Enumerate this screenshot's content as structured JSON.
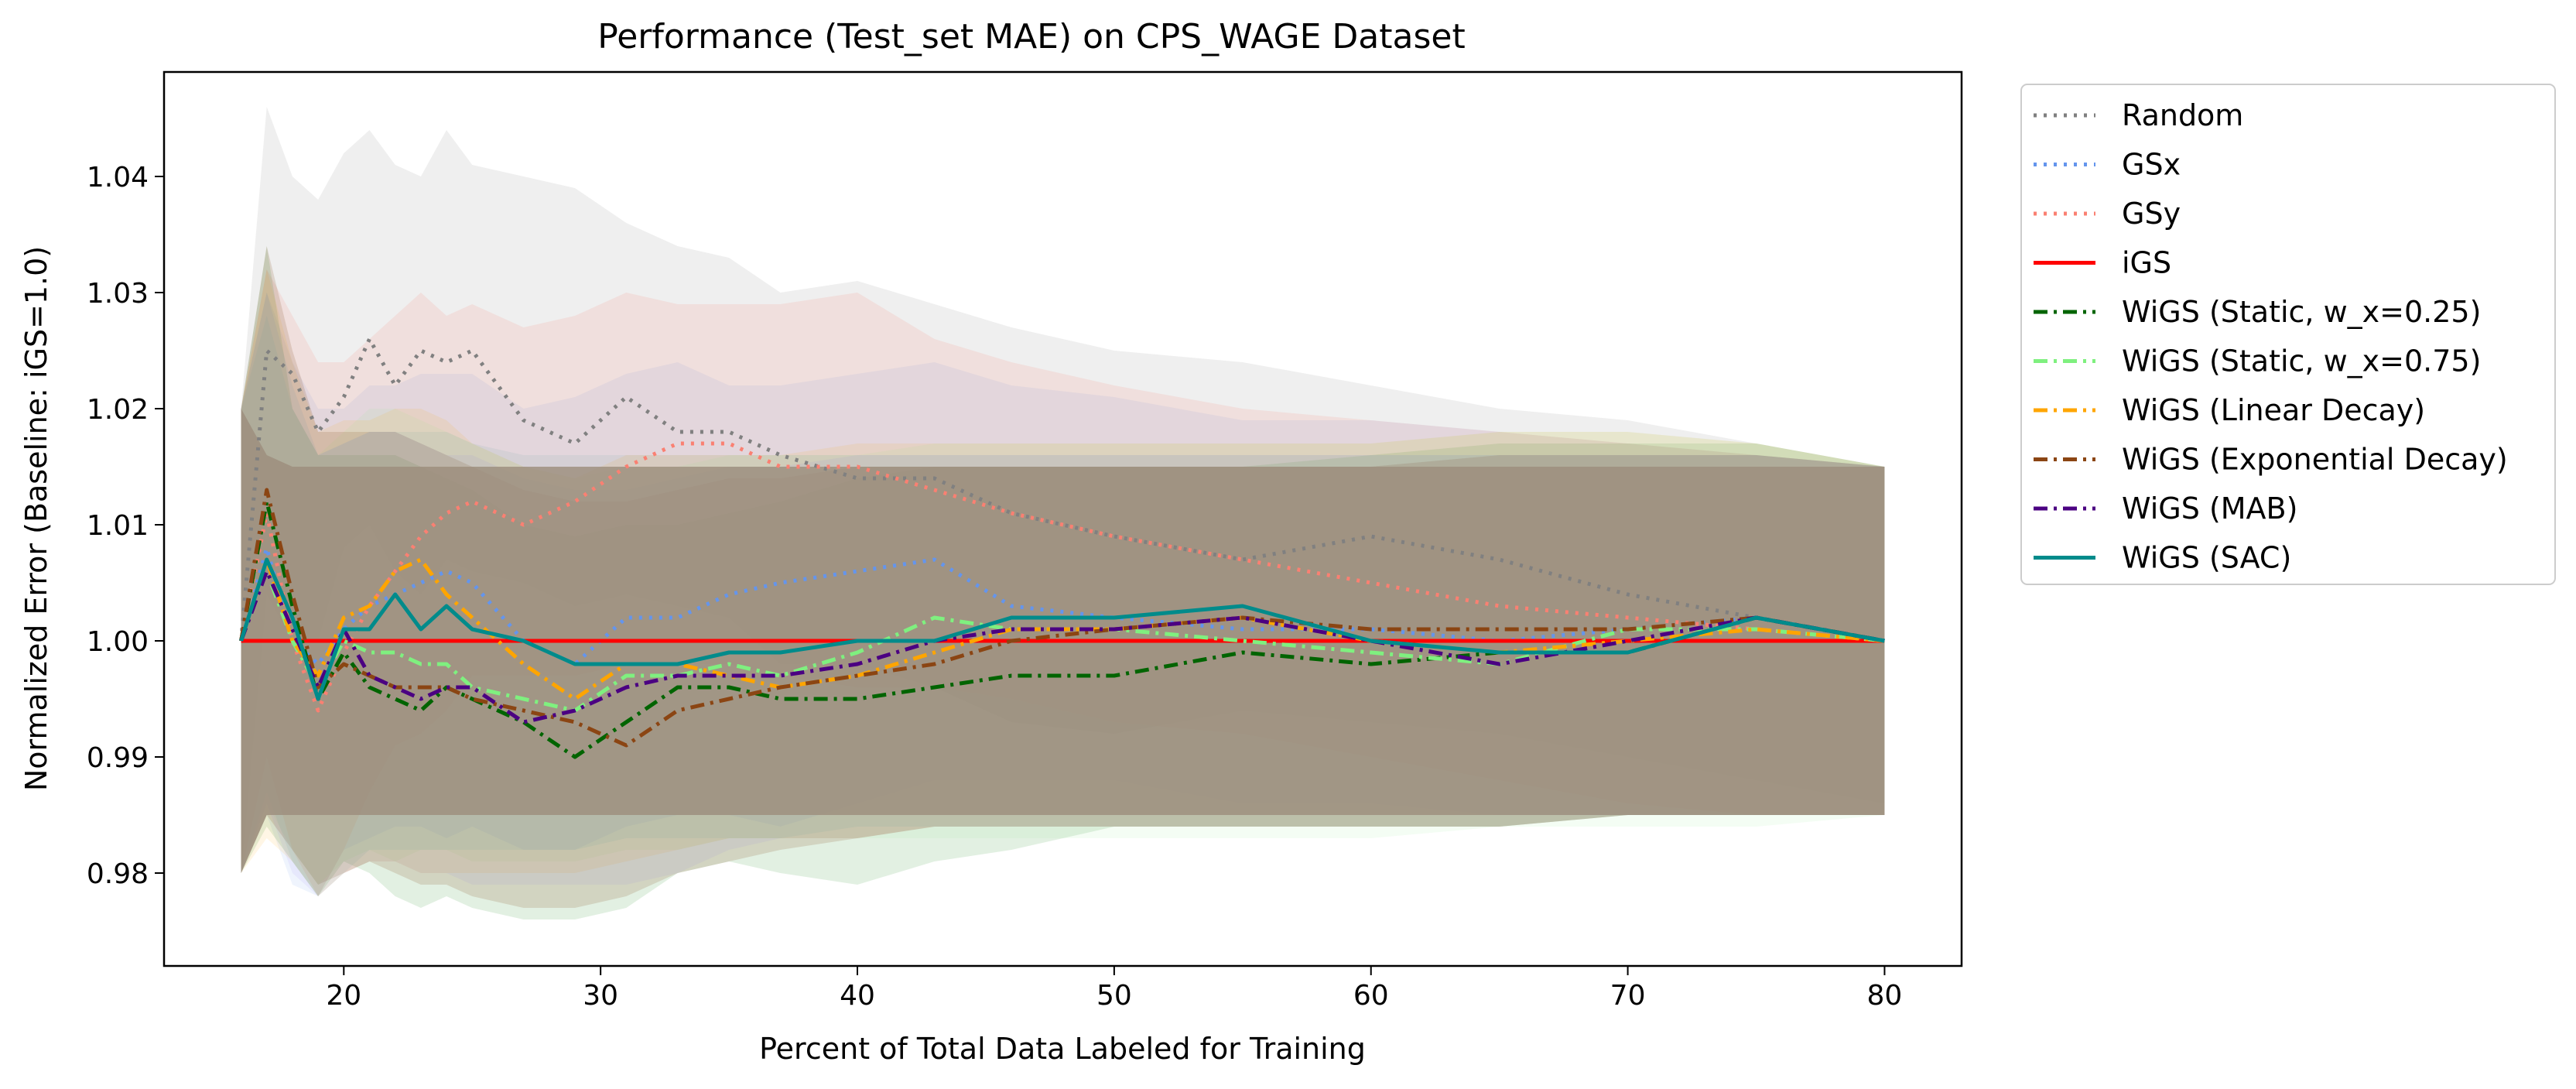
{
  "chart_data": {
    "type": "line",
    "title": "Performance (Test_set MAE) on CPS_WAGE Dataset",
    "xlabel": "Percent of Total Data Labeled for Training",
    "ylabel": "Normalized Error (Baseline: iGS=1.0)",
    "xlim": [
      13,
      83
    ],
    "ylim": [
      0.972,
      1.049
    ],
    "xticks": [
      20,
      30,
      40,
      50,
      60,
      70,
      80
    ],
    "xtick_labels": [
      "20",
      "30",
      "40",
      "50",
      "60",
      "70",
      "80"
    ],
    "yticks": [
      0.98,
      0.99,
      1.0,
      1.01,
      1.02,
      1.03,
      1.04
    ],
    "ytick_labels": [
      "0.98",
      "0.99",
      "1.00",
      "1.01",
      "1.02",
      "1.03",
      "1.04"
    ],
    "grid": false,
    "legend_position": "outside-right",
    "x": [
      16,
      17,
      18,
      19,
      20,
      21,
      22,
      23,
      24,
      25,
      27,
      29,
      31,
      33,
      35,
      37,
      40,
      43,
      46,
      50,
      55,
      60,
      65,
      70,
      75,
      80
    ],
    "bands": [
      {
        "name": "Random",
        "color": "#bdbdbd",
        "opacity": 0.24,
        "upper": [
          1.02,
          1.046,
          1.04,
          1.038,
          1.042,
          1.044,
          1.041,
          1.04,
          1.044,
          1.041,
          1.04,
          1.039,
          1.036,
          1.034,
          1.033,
          1.03,
          1.031,
          1.029,
          1.027,
          1.025,
          1.024,
          1.022,
          1.02,
          1.019,
          1.017,
          1.015
        ],
        "lower": [
          0.98,
          1.004,
          1.0,
          1.0,
          1.008,
          1.01,
          1.006,
          1.004,
          1.007,
          1.006,
          1.005,
          1.003,
          1.004,
          1.003,
          1.002,
          0.998,
          0.998,
          0.996,
          0.993,
          0.992,
          0.994,
          0.993,
          0.992,
          0.99,
          0.988,
          0.986
        ]
      },
      {
        "name": "GSx",
        "color": "#6495ed",
        "opacity": 0.1,
        "upper": [
          1.02,
          1.03,
          1.024,
          1.02,
          1.02,
          1.022,
          1.022,
          1.023,
          1.023,
          1.023,
          1.02,
          1.021,
          1.023,
          1.024,
          1.022,
          1.022,
          1.023,
          1.024,
          1.022,
          1.021,
          1.019,
          1.019,
          1.018,
          1.017,
          1.016,
          1.015
        ],
        "lower": [
          0.98,
          0.985,
          0.979,
          0.978,
          0.982,
          0.983,
          0.984,
          0.984,
          0.983,
          0.984,
          0.982,
          0.982,
          0.984,
          0.985,
          0.985,
          0.984,
          0.986,
          0.988,
          0.988,
          0.988,
          0.986,
          0.986,
          0.985,
          0.985,
          0.985,
          0.985
        ]
      },
      {
        "name": "GSy",
        "color": "#fa8072",
        "opacity": 0.14,
        "upper": [
          1.02,
          1.032,
          1.028,
          1.024,
          1.024,
          1.026,
          1.028,
          1.03,
          1.028,
          1.029,
          1.027,
          1.028,
          1.03,
          1.029,
          1.029,
          1.029,
          1.03,
          1.026,
          1.024,
          1.022,
          1.02,
          1.019,
          1.018,
          1.017,
          1.016,
          1.015
        ],
        "lower": [
          0.98,
          0.99,
          0.982,
          0.978,
          0.982,
          0.987,
          0.991,
          0.992,
          0.994,
          0.997,
          0.997,
          0.997,
          0.998,
          0.998,
          0.998,
          0.997,
          0.996,
          0.996,
          0.995,
          0.993,
          0.992,
          0.99,
          0.988,
          0.986,
          0.985,
          0.985
        ]
      },
      {
        "name": "WiGS (Static, w_x=0.25)",
        "color": "#228b22",
        "opacity": 0.13,
        "upper": [
          1.02,
          1.034,
          1.02,
          1.016,
          1.016,
          1.016,
          1.016,
          1.015,
          1.014,
          1.013,
          1.01,
          1.009,
          1.01,
          1.01,
          1.011,
          1.012,
          1.014,
          1.015,
          1.015,
          1.015,
          1.015,
          1.016,
          1.017,
          1.017,
          1.017,
          1.015
        ],
        "lower": [
          0.98,
          0.984,
          0.981,
          0.978,
          0.981,
          0.98,
          0.978,
          0.977,
          0.978,
          0.977,
          0.976,
          0.976,
          0.977,
          0.98,
          0.981,
          0.98,
          0.979,
          0.981,
          0.982,
          0.984,
          0.984,
          0.984,
          0.984,
          0.985,
          0.985,
          0.985
        ]
      },
      {
        "name": "WiGS (Static, w_x=0.75)",
        "color": "#90ee90",
        "opacity": 0.1,
        "upper": [
          1.02,
          1.03,
          1.022,
          1.016,
          1.018,
          1.02,
          1.02,
          1.019,
          1.018,
          1.017,
          1.015,
          1.014,
          1.015,
          1.015,
          1.016,
          1.016,
          1.016,
          1.017,
          1.017,
          1.017,
          1.017,
          1.017,
          1.018,
          1.018,
          1.017,
          1.015
        ],
        "lower": [
          0.98,
          0.986,
          0.982,
          0.979,
          0.981,
          0.982,
          0.981,
          0.982,
          0.982,
          0.981,
          0.981,
          0.981,
          0.982,
          0.982,
          0.983,
          0.983,
          0.983,
          0.983,
          0.983,
          0.983,
          0.983,
          0.983,
          0.984,
          0.984,
          0.984,
          0.985
        ]
      },
      {
        "name": "WiGS (Linear Decay)",
        "color": "#ffa500",
        "opacity": 0.1,
        "upper": [
          1.02,
          1.032,
          1.024,
          1.018,
          1.019,
          1.019,
          1.02,
          1.02,
          1.019,
          1.017,
          1.015,
          1.014,
          1.016,
          1.016,
          1.016,
          1.016,
          1.017,
          1.017,
          1.017,
          1.017,
          1.017,
          1.017,
          1.018,
          1.018,
          1.017,
          1.015
        ],
        "lower": [
          0.98,
          0.983,
          0.981,
          0.978,
          0.98,
          0.981,
          0.981,
          0.98,
          0.98,
          0.98,
          0.98,
          0.98,
          0.981,
          0.982,
          0.983,
          0.983,
          0.983,
          0.984,
          0.984,
          0.984,
          0.984,
          0.984,
          0.984,
          0.985,
          0.985,
          0.985
        ]
      },
      {
        "name": "WiGS (Exponential Decay)",
        "color": "#8b5a2b",
        "opacity": 0.18,
        "upper": [
          1.02,
          1.034,
          1.025,
          1.018,
          1.018,
          1.018,
          1.018,
          1.017,
          1.016,
          1.015,
          1.013,
          1.012,
          1.012,
          1.013,
          1.014,
          1.014,
          1.015,
          1.015,
          1.015,
          1.015,
          1.015,
          1.015,
          1.016,
          1.016,
          1.016,
          1.015
        ],
        "lower": [
          0.98,
          0.985,
          0.982,
          0.979,
          0.98,
          0.981,
          0.98,
          0.979,
          0.979,
          0.978,
          0.977,
          0.977,
          0.978,
          0.98,
          0.981,
          0.982,
          0.983,
          0.984,
          0.984,
          0.984,
          0.984,
          0.984,
          0.984,
          0.985,
          0.985,
          0.985
        ]
      },
      {
        "name": "WiGS (MAB)",
        "color": "#7b68ee",
        "opacity": 0.08,
        "upper": [
          1.02,
          1.03,
          1.022,
          1.016,
          1.017,
          1.018,
          1.018,
          1.017,
          1.016,
          1.016,
          1.014,
          1.013,
          1.013,
          1.014,
          1.015,
          1.015,
          1.016,
          1.016,
          1.016,
          1.016,
          1.016,
          1.016,
          1.016,
          1.016,
          1.016,
          1.015
        ],
        "lower": [
          0.98,
          0.986,
          0.98,
          0.978,
          0.98,
          0.981,
          0.981,
          0.98,
          0.98,
          0.979,
          0.979,
          0.979,
          0.979,
          0.98,
          0.982,
          0.983,
          0.983,
          0.984,
          0.984,
          0.984,
          0.984,
          0.984,
          0.984,
          0.985,
          0.985,
          0.985
        ]
      },
      {
        "name": "WiGS (SAC)",
        "color": "#5f9ea0",
        "opacity": 0.1,
        "upper": [
          1.02,
          1.028,
          1.02,
          1.016,
          1.017,
          1.018,
          1.018,
          1.018,
          1.018,
          1.017,
          1.016,
          1.016,
          1.016,
          1.016,
          1.016,
          1.016,
          1.016,
          1.016,
          1.016,
          1.016,
          1.016,
          1.016,
          1.016,
          1.016,
          1.016,
          1.015
        ],
        "lower": [
          0.98,
          0.987,
          0.981,
          0.978,
          0.98,
          0.982,
          0.982,
          0.982,
          0.982,
          0.982,
          0.982,
          0.982,
          0.983,
          0.983,
          0.983,
          0.983,
          0.984,
          0.984,
          0.984,
          0.984,
          0.984,
          0.984,
          0.984,
          0.985,
          0.985,
          0.985
        ]
      },
      {
        "name": "iGS",
        "color": "#9c8e7c",
        "opacity": 0.82,
        "upper": [
          1.02,
          1.016,
          1.015,
          1.015,
          1.015,
          1.015,
          1.015,
          1.015,
          1.015,
          1.015,
          1.015,
          1.015,
          1.015,
          1.015,
          1.015,
          1.015,
          1.015,
          1.015,
          1.015,
          1.015,
          1.015,
          1.015,
          1.015,
          1.015,
          1.015,
          1.015
        ],
        "lower": [
          0.98,
          0.985,
          0.985,
          0.985,
          0.985,
          0.985,
          0.985,
          0.985,
          0.985,
          0.985,
          0.985,
          0.985,
          0.985,
          0.985,
          0.985,
          0.985,
          0.985,
          0.985,
          0.985,
          0.985,
          0.985,
          0.985,
          0.985,
          0.985,
          0.985,
          0.985
        ]
      }
    ],
    "series": [
      {
        "name": "Random",
        "color": "#808080",
        "dash": "dotted",
        "values": [
          1.0,
          1.025,
          1.023,
          1.018,
          1.021,
          1.026,
          1.022,
          1.025,
          1.024,
          1.025,
          1.019,
          1.017,
          1.021,
          1.018,
          1.018,
          1.016,
          1.014,
          1.014,
          1.011,
          1.009,
          1.007,
          1.009,
          1.007,
          1.004,
          1.002,
          1.0
        ]
      },
      {
        "name": "GSx",
        "color": "#6495ed",
        "dash": "dotted",
        "values": [
          1.0,
          1.008,
          1.0,
          0.998,
          1.001,
          1.003,
          1.004,
          1.005,
          1.006,
          1.005,
          1.0,
          0.998,
          1.002,
          1.002,
          1.004,
          1.005,
          1.006,
          1.007,
          1.003,
          1.002,
          1.001,
          1.001,
          1.0,
          1.001,
          1.002,
          1.0
        ]
      },
      {
        "name": "GSy",
        "color": "#fa8072",
        "dash": "dotted",
        "values": [
          1.0,
          1.011,
          1.0,
          0.994,
          0.999,
          1.003,
          1.006,
          1.009,
          1.011,
          1.012,
          1.01,
          1.012,
          1.015,
          1.017,
          1.017,
          1.015,
          1.015,
          1.013,
          1.011,
          1.009,
          1.007,
          1.005,
          1.003,
          1.002,
          1.001,
          1.0
        ]
      },
      {
        "name": "iGS",
        "color": "#ff0000",
        "dash": "solid",
        "values": [
          1.0,
          1.0,
          1.0,
          1.0,
          1.0,
          1.0,
          1.0,
          1.0,
          1.0,
          1.0,
          1.0,
          1.0,
          1.0,
          1.0,
          1.0,
          1.0,
          1.0,
          1.0,
          1.0,
          1.0,
          1.0,
          1.0,
          1.0,
          1.0,
          1.0,
          1.0
        ]
      },
      {
        "name": "WiGS (Static, w_x=0.25)",
        "color": "#006400",
        "dash": "dashdot",
        "values": [
          1.0,
          1.012,
          1.003,
          0.995,
          0.999,
          0.996,
          0.995,
          0.994,
          0.996,
          0.995,
          0.993,
          0.99,
          0.993,
          0.996,
          0.996,
          0.995,
          0.995,
          0.996,
          0.997,
          0.997,
          0.999,
          0.998,
          0.999,
          0.999,
          1.002,
          1.0
        ]
      },
      {
        "name": "WiGS (Static, w_x=0.75)",
        "color": "#7ff07f",
        "dash": "dashdot",
        "values": [
          1.0,
          1.006,
          1.0,
          0.996,
          1.0,
          0.999,
          0.999,
          0.998,
          0.998,
          0.996,
          0.995,
          0.994,
          0.997,
          0.997,
          0.998,
          0.997,
          0.999,
          1.002,
          1.001,
          1.001,
          1.0,
          0.999,
          0.998,
          1.001,
          1.001,
          1.0
        ]
      },
      {
        "name": "WiGS (Linear Decay)",
        "color": "#ffa500",
        "dash": "dashdot",
        "values": [
          1.0,
          1.007,
          1.0,
          0.997,
          1.002,
          1.003,
          1.006,
          1.007,
          1.004,
          1.002,
          0.998,
          0.995,
          0.998,
          0.998,
          0.997,
          0.996,
          0.997,
          0.999,
          1.001,
          1.001,
          1.002,
          1.0,
          0.999,
          1.0,
          1.001,
          1.0
        ]
      },
      {
        "name": "WiGS (Exponential Decay)",
        "color": "#8b4513",
        "dash": "dashdot",
        "values": [
          1.0,
          1.013,
          1.004,
          0.996,
          0.998,
          0.997,
          0.996,
          0.996,
          0.996,
          0.995,
          0.994,
          0.993,
          0.991,
          0.994,
          0.995,
          0.996,
          0.997,
          0.998,
          1.0,
          1.001,
          1.002,
          1.001,
          1.001,
          1.001,
          1.002,
          1.0
        ]
      },
      {
        "name": "WiGS (MAB)",
        "color": "#4b0082",
        "dash": "dashdot",
        "values": [
          1.0,
          1.006,
          1.001,
          0.996,
          1.001,
          0.997,
          0.996,
          0.995,
          0.996,
          0.996,
          0.993,
          0.994,
          0.996,
          0.997,
          0.997,
          0.997,
          0.998,
          1.0,
          1.001,
          1.001,
          1.002,
          1.0,
          0.998,
          1.0,
          1.002,
          1.0
        ]
      },
      {
        "name": "WiGS (SAC)",
        "color": "#008b8b",
        "dash": "solid",
        "values": [
          1.0,
          1.007,
          1.002,
          0.995,
          1.001,
          1.001,
          1.004,
          1.001,
          1.003,
          1.001,
          1.0,
          0.998,
          0.998,
          0.998,
          0.999,
          0.999,
          1.0,
          1.0,
          1.002,
          1.002,
          1.003,
          1.0,
          0.999,
          0.999,
          1.002,
          1.0
        ]
      }
    ]
  }
}
